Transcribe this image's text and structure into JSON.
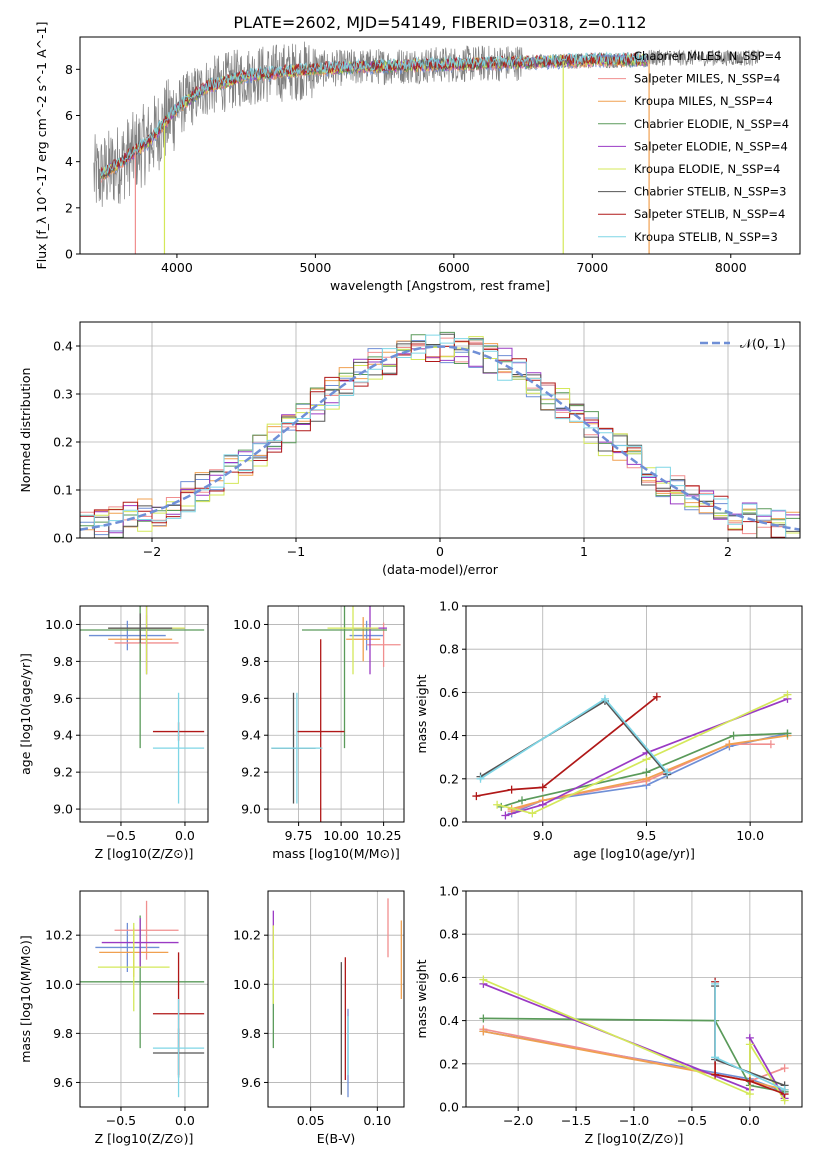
{
  "figure_title": "PLATE=2602, MJD=54149, FIBERID=0318, z=0.112",
  "colors": {
    "Chabrier MILES": "#6f8fd6",
    "Salpeter MILES": "#f08f8f",
    "Kroupa MILES": "#f0a050",
    "Chabrier ELODIE": "#5a9a5a",
    "Salpeter ELODIE": "#9a3ac4",
    "Kroupa ELODIE": "#d4e85a",
    "Chabrier STELIB": "#555555",
    "Salpeter STELIB": "#b01818",
    "Kroupa STELIB": "#7fd6e6",
    "data": "#808080",
    "normal": "#6f8fd6",
    "grid": "#b0b0b0"
  },
  "chart_data": [
    {
      "type": "line",
      "title": "PLATE=2602, MJD=54149, FIBERID=0318, z=0.112",
      "xlabel": "wavelength [Angstrom, rest frame]",
      "ylabel": "Flux [f_λ 10^-17 erg cm^-2 s^-1 A^-1]",
      "xlim": [
        3300,
        8500
      ],
      "ylim": [
        0,
        9.4
      ],
      "xticks": [
        "4000",
        "5000",
        "6000",
        "7000",
        "8000"
      ],
      "yticks": [
        "0",
        "2",
        "4",
        "6",
        "8"
      ],
      "grid": false,
      "legend_position": "right",
      "legend": [
        "Chabrier MILES, N_SSP=4",
        "Salpeter MILES, N_SSP=4",
        "Kroupa MILES, N_SSP=4",
        "Chabrier ELODIE, N_SSP=4",
        "Salpeter ELODIE, N_SSP=4",
        "Kroupa ELODIE, N_SSP=4",
        "Chabrier STELIB, N_SSP=3",
        "Salpeter STELIB, N_SSP=4",
        "Kroupa STELIB, N_SSP=3"
      ],
      "model_continuum": {
        "x": [
          3450,
          3600,
          3800,
          4000,
          4200,
          4500,
          4800,
          5000,
          5300,
          5600,
          5900,
          6200,
          6500,
          6800,
          7000,
          7200,
          7400
        ],
        "y": [
          3.4,
          4.0,
          4.9,
          6.3,
          7.2,
          7.7,
          7.9,
          8.0,
          8.1,
          8.15,
          8.2,
          8.25,
          8.3,
          8.35,
          8.4,
          8.4,
          8.4
        ]
      },
      "data_range_x": [
        3400,
        8200
      ]
    },
    {
      "type": "line",
      "xlabel": "(data-model)/error",
      "ylabel": "Normed distribution",
      "xlim": [
        -2.5,
        2.5
      ],
      "ylim": [
        0,
        0.45
      ],
      "xticks": [
        "−2",
        "−1",
        "0",
        "1",
        "2"
      ],
      "yticks": [
        "0.0",
        "0.1",
        "0.2",
        "0.3",
        "0.4"
      ],
      "grid": true,
      "legend_position": "upper right",
      "legend": [
        "𝒩(0, 1)"
      ],
      "histogram_bin_width": 0.1,
      "normal_curve": {
        "mean": 0,
        "sigma": 1
      }
    },
    {
      "type": "scatter",
      "xlabel": "Z [log10(Z/Z⊙)]",
      "ylabel": "age [log10(age/yr)]",
      "xlim": [
        -0.82,
        0.18
      ],
      "ylim": [
        8.93,
        10.1
      ],
      "xticks": [
        "−0.5",
        "0.0"
      ],
      "yticks": [
        "9.0",
        "9.2",
        "9.4",
        "9.6",
        "9.8",
        "10.0"
      ],
      "grid": true,
      "errorbars": [
        {
          "series": "Chabrier MILES",
          "x": -0.45,
          "xerr": 0.3,
          "y": 9.94,
          "yerr": 0.08
        },
        {
          "series": "Salpeter MILES",
          "x": -0.3,
          "xerr": 0.25,
          "y": 9.9,
          "yerr": 0.15
        },
        {
          "series": "Kroupa MILES",
          "x": -0.35,
          "xerr": 0.25,
          "y": 9.92,
          "yerr": 0.12
        },
        {
          "series": "Chabrier ELODIE",
          "x": -0.35,
          "xerr": 0.5,
          "y": 9.97,
          "yerr": 0.64
        },
        {
          "series": "Salpeter ELODIE",
          "x": -0.3,
          "xerr": 0.3,
          "y": 9.98,
          "yerr": 0.25
        },
        {
          "series": "Kroupa ELODIE",
          "x": -0.3,
          "xerr": 0.3,
          "y": 9.98,
          "yerr": 0.25
        },
        {
          "series": "Chabrier STELIB",
          "x": -0.35,
          "xerr": 0.25,
          "y": 9.98,
          "yerr": 0.08
        },
        {
          "series": "Salpeter STELIB",
          "x": -0.05,
          "xerr": 0.2,
          "y": 9.42,
          "yerr": 0.05
        },
        {
          "series": "Kroupa STELIB",
          "x": -0.05,
          "xerr": 0.2,
          "y": 9.33,
          "yerr": 0.3
        }
      ]
    },
    {
      "type": "scatter",
      "xlabel": "mass [log10(M/M⊙)]",
      "xlim": [
        9.57,
        10.37
      ],
      "ylim": [
        8.93,
        10.1
      ],
      "xticks": [
        "9.75",
        "10.00",
        "10.25"
      ],
      "yticks": [
        "9.0",
        "9.2",
        "9.4",
        "9.6",
        "9.8",
        "10.0"
      ],
      "grid": true,
      "errorbars": [
        {
          "series": "Chabrier MILES",
          "x": 10.15,
          "xerr": 0.1,
          "y": 9.94,
          "yerr": 0.08
        },
        {
          "series": "Salpeter MILES",
          "x": 10.25,
          "xerr": 0.1,
          "y": 9.89,
          "yerr": 0.12
        },
        {
          "series": "Kroupa MILES",
          "x": 10.13,
          "xerr": 0.1,
          "y": 9.92,
          "yerr": 0.12
        },
        {
          "series": "Chabrier ELODIE",
          "x": 10.02,
          "xerr": 0.25,
          "y": 9.97,
          "yerr": 0.64
        },
        {
          "series": "Salpeter ELODIE",
          "x": 10.17,
          "xerr": 0.1,
          "y": 9.98,
          "yerr": 0.25
        },
        {
          "series": "Kroupa ELODIE",
          "x": 10.07,
          "xerr": 0.15,
          "y": 9.98,
          "yerr": 0.25
        },
        {
          "series": "Chabrier STELIB",
          "x": 9.72,
          "xerr": 0.13,
          "y": 9.33,
          "yerr": 0.3
        },
        {
          "series": "Salpeter STELIB",
          "x": 9.88,
          "xerr": 0.14,
          "y": 9.42,
          "yerr": 0.5
        },
        {
          "series": "Kroupa STELIB",
          "x": 9.74,
          "xerr": 0.15,
          "y": 9.33,
          "yerr": 0.3
        }
      ]
    },
    {
      "type": "line",
      "xlabel": "age [log10(age/yr)]",
      "ylabel": "mass weight",
      "xlim": [
        8.63,
        10.25
      ],
      "ylim": [
        0,
        1.0
      ],
      "xticks": [
        "9.0",
        "9.5",
        "10.0"
      ],
      "yticks": [
        "0.0",
        "0.2",
        "0.4",
        "0.6",
        "0.8",
        "1.0"
      ],
      "grid": true,
      "x": [
        8.7,
        9.3,
        9.6,
        10.18
      ],
      "series": [
        {
          "name": "Chabrier MILES",
          "x": [
            8.85,
            9.0,
            9.5,
            9.9,
            10.18
          ],
          "values": [
            0.04,
            0.1,
            0.17,
            0.35,
            0.41
          ]
        },
        {
          "name": "Salpeter MILES",
          "x": [
            8.85,
            9.0,
            9.5,
            9.9,
            10.1
          ],
          "values": [
            0.05,
            0.1,
            0.19,
            0.36,
            0.36
          ]
        },
        {
          "name": "Kroupa MILES",
          "x": [
            8.85,
            9.0,
            9.5,
            9.9,
            10.18
          ],
          "values": [
            0.06,
            0.1,
            0.2,
            0.36,
            0.4
          ]
        },
        {
          "name": "Chabrier ELODIE",
          "x": [
            8.8,
            8.9,
            9.5,
            9.92,
            10.18
          ],
          "values": [
            0.07,
            0.1,
            0.23,
            0.4,
            0.41
          ]
        },
        {
          "name": "Salpeter ELODIE",
          "x": [
            8.82,
            9.0,
            9.5,
            10.18
          ],
          "values": [
            0.03,
            0.08,
            0.32,
            0.57
          ]
        },
        {
          "name": "Kroupa ELODIE",
          "x": [
            8.78,
            8.95,
            9.5,
            10.18
          ],
          "values": [
            0.08,
            0.04,
            0.29,
            0.59
          ]
        },
        {
          "name": "Chabrier STELIB",
          "x": [
            8.7,
            9.3,
            9.6
          ],
          "values": [
            0.21,
            0.56,
            0.22
          ]
        },
        {
          "name": "Salpeter STELIB",
          "x": [
            8.68,
            8.85,
            9.0,
            9.55
          ],
          "values": [
            0.12,
            0.15,
            0.16,
            0.58
          ]
        },
        {
          "name": "Kroupa STELIB",
          "x": [
            8.7,
            9.3,
            9.6
          ],
          "values": [
            0.2,
            0.57,
            0.23
          ]
        }
      ]
    },
    {
      "type": "scatter",
      "xlabel": "Z [log10(Z/Z⊙)]",
      "ylabel": "mass [log10(M/M⊙)]",
      "xlim": [
        -0.82,
        0.18
      ],
      "ylim": [
        9.5,
        10.38
      ],
      "xticks": [
        "−0.5",
        "0.0"
      ],
      "yticks": [
        "9.6",
        "9.8",
        "10.0",
        "10.2"
      ],
      "grid": true,
      "errorbars": [
        {
          "series": "Chabrier MILES",
          "x": -0.45,
          "xerr": 0.25,
          "y": 10.15,
          "yerr": 0.1
        },
        {
          "series": "Salpeter MILES",
          "x": -0.3,
          "xerr": 0.25,
          "y": 10.22,
          "yerr": 0.12
        },
        {
          "series": "Kroupa MILES",
          "x": -0.4,
          "xerr": 0.27,
          "y": 10.13,
          "yerr": 0.1
        },
        {
          "series": "Chabrier ELODIE",
          "x": -0.35,
          "xerr": 0.5,
          "y": 10.01,
          "yerr": 0.27
        },
        {
          "series": "Salpeter ELODIE",
          "x": -0.35,
          "xerr": 0.3,
          "y": 10.17,
          "yerr": 0.1
        },
        {
          "series": "Kroupa ELODIE",
          "x": -0.4,
          "xerr": 0.28,
          "y": 10.07,
          "yerr": 0.18
        },
        {
          "series": "Chabrier STELIB",
          "x": -0.05,
          "xerr": 0.2,
          "y": 9.72,
          "yerr": 0.1
        },
        {
          "series": "Salpeter STELIB",
          "x": -0.05,
          "xerr": 0.2,
          "y": 9.88,
          "yerr": 0.25
        },
        {
          "series": "Kroupa STELIB",
          "x": -0.05,
          "xerr": 0.2,
          "y": 9.74,
          "yerr": 0.2
        }
      ]
    },
    {
      "type": "scatter",
      "xlabel": "E(B-V)",
      "xlim": [
        0.018,
        0.12
      ],
      "ylim": [
        9.5,
        10.38
      ],
      "xticks": [
        "0.05",
        "0.10"
      ],
      "yticks": [
        "9.6",
        "9.8",
        "10.0",
        "10.2"
      ],
      "grid": true,
      "errorbars": [
        {
          "series": "Chabrier MILES",
          "x": 0.078,
          "xerr": 0,
          "y": 9.72,
          "yerr": 0.18
        },
        {
          "series": "Salpeter MILES",
          "x": 0.108,
          "xerr": 0,
          "y": 10.23,
          "yerr": 0.12
        },
        {
          "series": "Kroupa MILES",
          "x": 0.118,
          "xerr": 0,
          "y": 10.1,
          "yerr": 0.16
        },
        {
          "series": "Chabrier ELODIE",
          "x": 0.022,
          "xerr": 0,
          "y": 9.88,
          "yerr": 0.14
        },
        {
          "series": "Salpeter ELODIE",
          "x": 0.022,
          "xerr": 0,
          "y": 10.2,
          "yerr": 0.1
        },
        {
          "series": "Kroupa ELODIE",
          "x": 0.022,
          "xerr": 0,
          "y": 10.08,
          "yerr": 0.16
        },
        {
          "series": "Chabrier STELIB",
          "x": 0.073,
          "xerr": 0,
          "y": 9.82,
          "yerr": 0.27
        },
        {
          "series": "Salpeter STELIB",
          "x": 0.076,
          "xerr": 0,
          "y": 9.86,
          "yerr": 0.25
        },
        {
          "series": "Kroupa STELIB",
          "x": 0.078,
          "xerr": 0,
          "y": 9.75,
          "yerr": 0.12
        }
      ]
    },
    {
      "type": "line",
      "xlabel": "Z [log10(Z/Z⊙)]",
      "ylabel": "mass weight",
      "xlim": [
        -2.45,
        0.45
      ],
      "ylim": [
        0,
        1.0
      ],
      "xticks": [
        "−2.0",
        "−1.5",
        "−1.0",
        "−0.5",
        "0.0"
      ],
      "yticks": [
        "0.0",
        "0.2",
        "0.4",
        "0.6",
        "0.8",
        "1.0"
      ],
      "grid": true,
      "series": [
        {
          "name": "Chabrier MILES",
          "x": [
            -2.3,
            0.0,
            0.3
          ],
          "values": [
            0.35,
            0.13,
            0.07
          ]
        },
        {
          "name": "Salpeter MILES",
          "x": [
            -2.3,
            0.0,
            0.3
          ],
          "values": [
            0.36,
            0.12,
            0.18
          ]
        },
        {
          "name": "Kroupa MILES",
          "x": [
            -2.3,
            0.0,
            0.3
          ],
          "values": [
            0.35,
            0.12,
            0.08
          ]
        },
        {
          "name": "Chabrier ELODIE",
          "x": [
            -2.3,
            -0.3,
            0.0,
            0.3
          ],
          "values": [
            0.41,
            0.4,
            0.1,
            0.07
          ]
        },
        {
          "name": "Salpeter ELODIE",
          "x": [
            -2.3,
            0.0,
            0.0,
            0.3
          ],
          "values": [
            0.57,
            0.08,
            0.32,
            0.04
          ]
        },
        {
          "name": "Kroupa ELODIE",
          "x": [
            -2.3,
            0.0,
            0.0,
            0.3
          ],
          "values": [
            0.59,
            0.06,
            0.29,
            0.03
          ]
        },
        {
          "name": "Chabrier STELIB",
          "x": [
            -0.3,
            -0.3,
            0.3
          ],
          "values": [
            0.56,
            0.22,
            0.1
          ]
        },
        {
          "name": "Salpeter STELIB",
          "x": [
            -0.3,
            -0.3,
            0.0,
            0.3
          ],
          "values": [
            0.58,
            0.15,
            0.12,
            0.06
          ]
        },
        {
          "name": "Kroupa STELIB",
          "x": [
            -0.3,
            -0.3,
            0.3
          ],
          "values": [
            0.57,
            0.23,
            0.08
          ]
        }
      ]
    }
  ]
}
